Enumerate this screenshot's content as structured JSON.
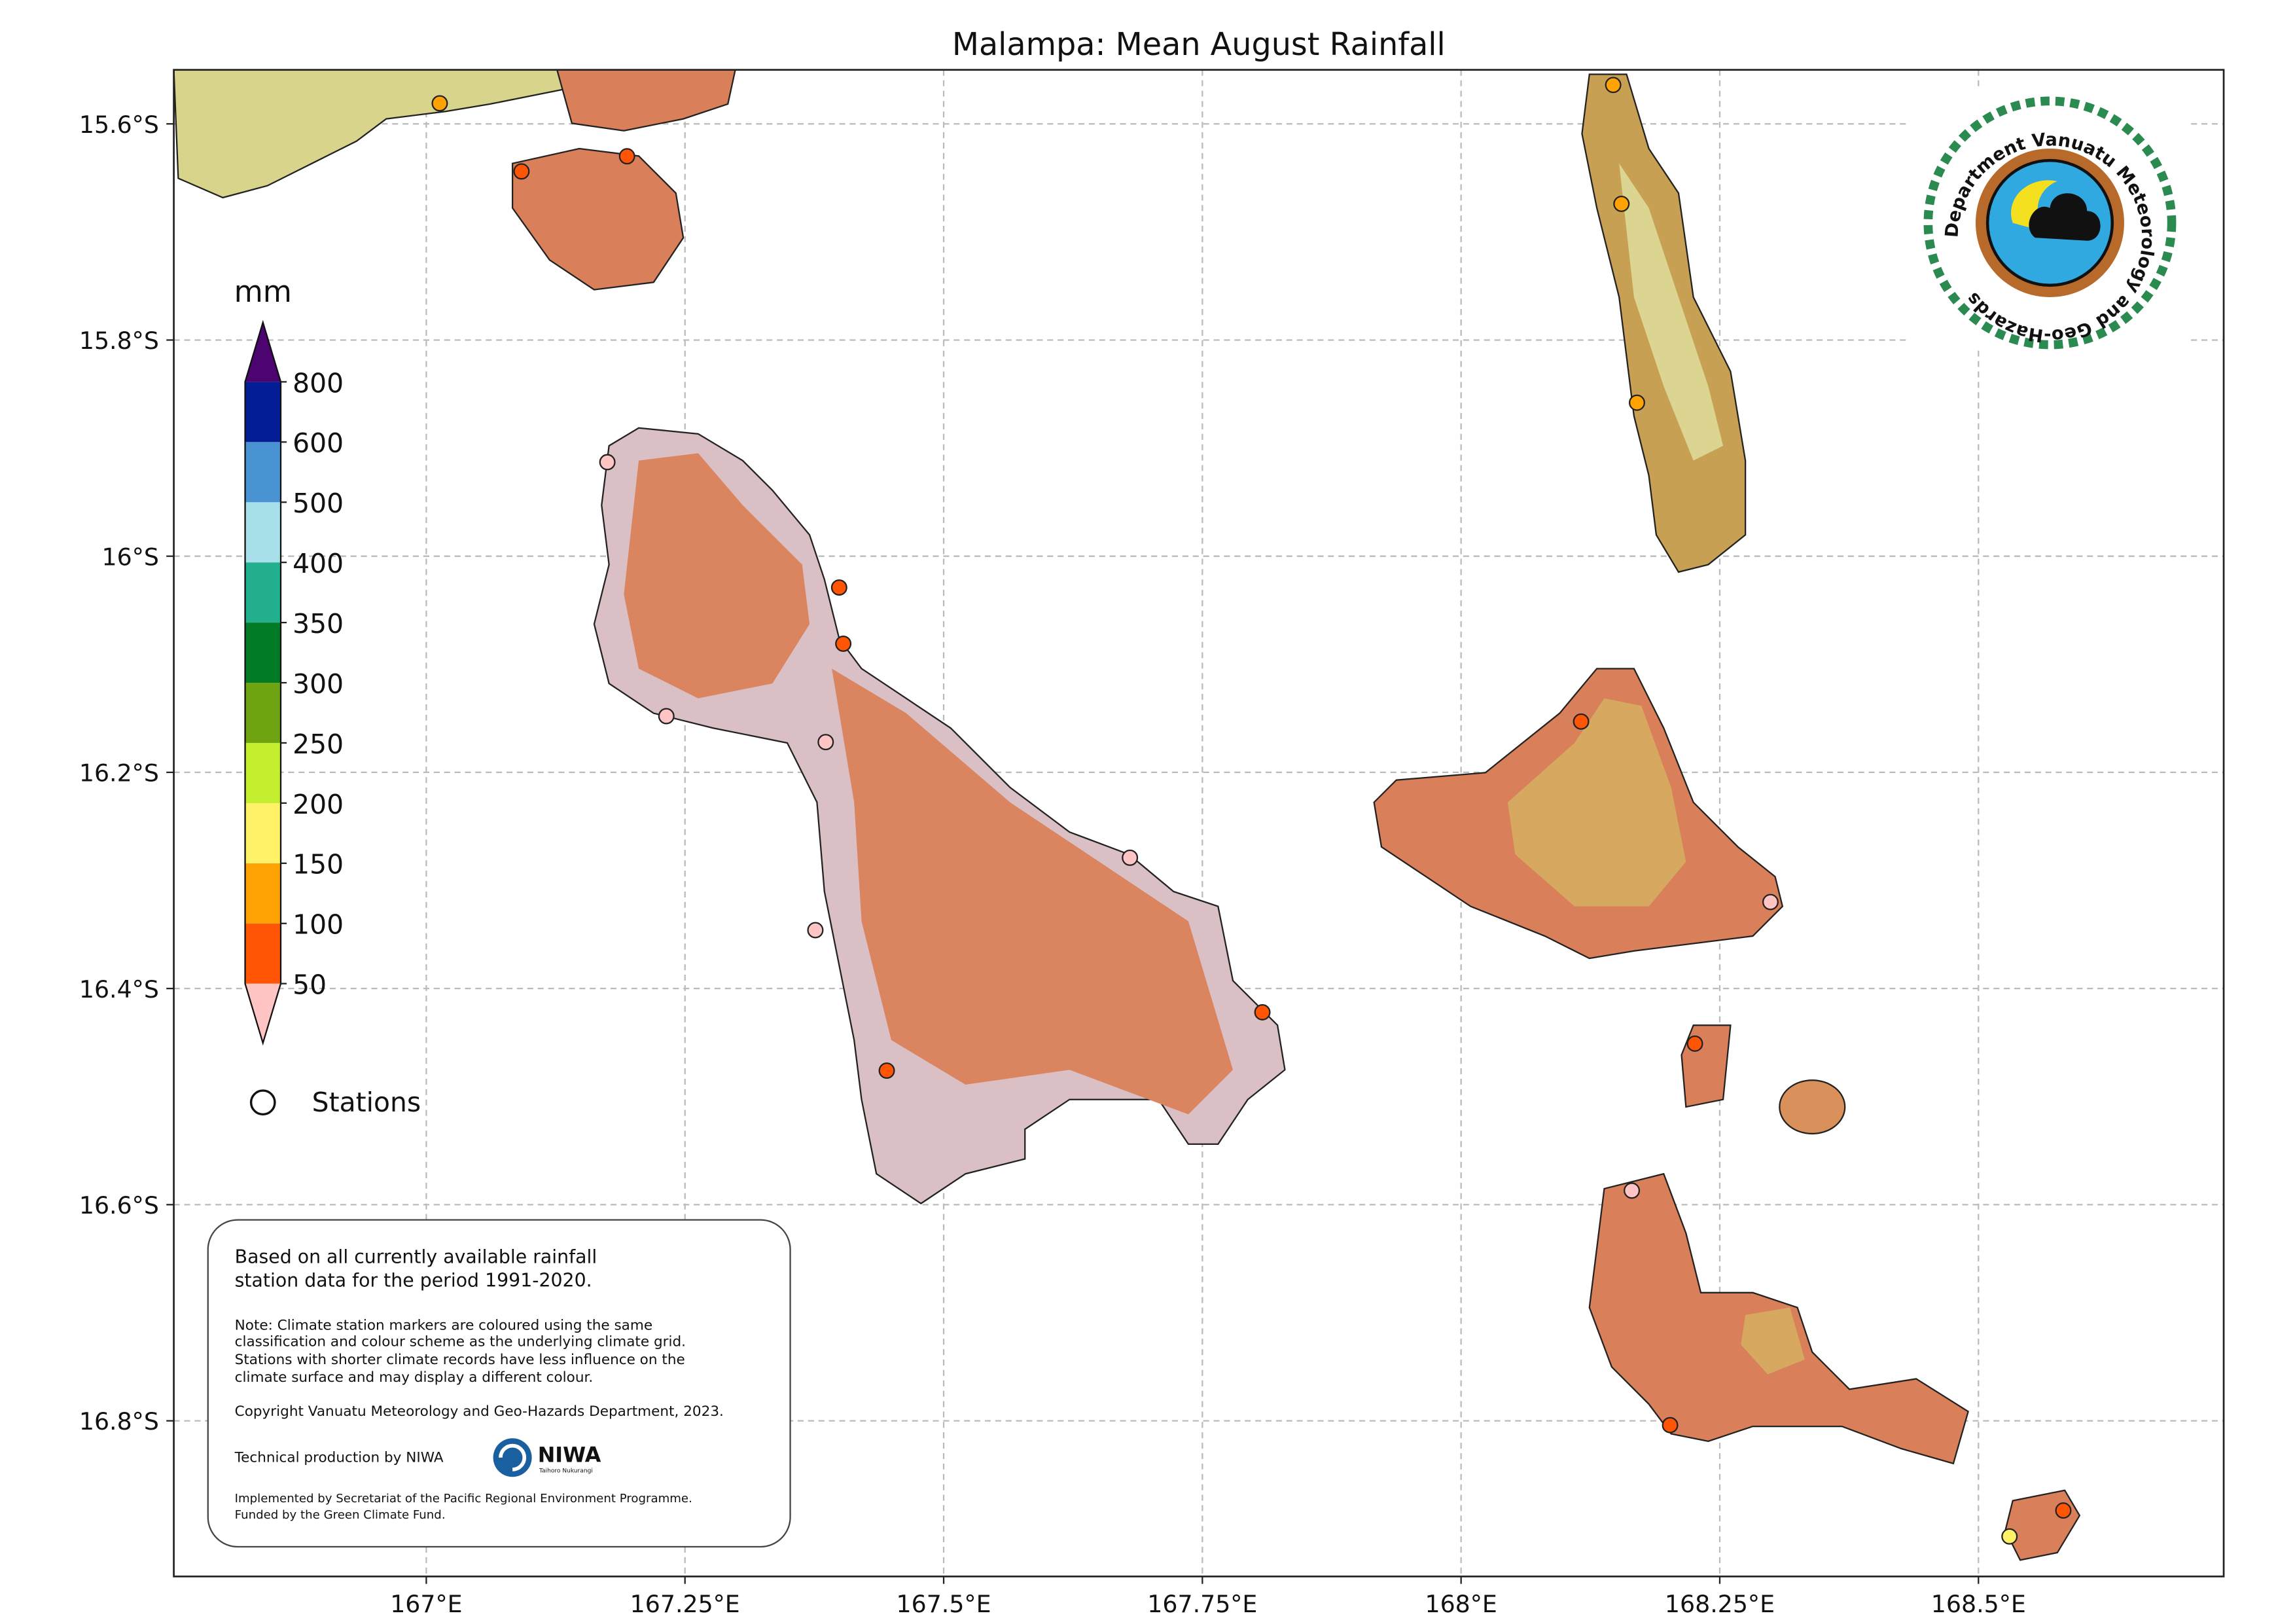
{
  "title": "Malampa: Mean August Rainfall",
  "map": {
    "xlim": [
      166.756,
      168.737
    ],
    "ylim": [
      -16.944,
      -15.55
    ],
    "xticks": [
      {
        "value": 167,
        "label": "167°E"
      },
      {
        "value": 167.25,
        "label": "167.25°E"
      },
      {
        "value": 167.5,
        "label": "167.5°E"
      },
      {
        "value": 167.75,
        "label": "167.75°E"
      },
      {
        "value": 168,
        "label": "168°E"
      },
      {
        "value": 168.25,
        "label": "168.25°E"
      },
      {
        "value": 168.5,
        "label": "168.5°E"
      }
    ],
    "yticks": [
      {
        "value": -15.6,
        "label": "15.6°S"
      },
      {
        "value": -15.8,
        "label": "15.8°S"
      },
      {
        "value": -16,
        "label": "16°S"
      },
      {
        "value": -16.2,
        "label": "16.2°S"
      },
      {
        "value": -16.4,
        "label": "16.4°S"
      },
      {
        "value": -16.6,
        "label": "16.6°S"
      },
      {
        "value": -16.8,
        "label": "16.8°S"
      }
    ]
  },
  "colorbar": {
    "unit": "mm",
    "levels": [
      50,
      100,
      150,
      200,
      250,
      300,
      350,
      400,
      500,
      600,
      800
    ],
    "colors": [
      "#ffc4c4",
      "#ff5505",
      "#ffa305",
      "#fff266",
      "#c3ee2d",
      "#6ea312",
      "#037a26",
      "#22b08f",
      "#a7e0e8",
      "#4a93d3",
      "#031d94",
      "#4c0470"
    ]
  },
  "legend_label": "Stations",
  "stations": [
    {
      "lon": 167.013,
      "lat": -15.581,
      "color": "#ffa305"
    },
    {
      "lon": 167.194,
      "lat": -15.63,
      "color": "#ff5505"
    },
    {
      "lon": 167.092,
      "lat": -15.644,
      "color": "#ff5505"
    },
    {
      "lon": 168.147,
      "lat": -15.564,
      "color": "#ffa305"
    },
    {
      "lon": 168.155,
      "lat": -15.674,
      "color": "#ffa305"
    },
    {
      "lon": 168.17,
      "lat": -15.858,
      "color": "#ffa305"
    },
    {
      "lon": 167.175,
      "lat": -15.913,
      "color": "#ffc4c4"
    },
    {
      "lon": 167.399,
      "lat": -16.029,
      "color": "#ff5505"
    },
    {
      "lon": 167.403,
      "lat": -16.081,
      "color": "#ff5505"
    },
    {
      "lon": 167.232,
      "lat": -16.148,
      "color": "#ffc4c4"
    },
    {
      "lon": 167.386,
      "lat": -16.172,
      "color": "#ffc4c4"
    },
    {
      "lon": 167.68,
      "lat": -16.279,
      "color": "#ffc4c4"
    },
    {
      "lon": 167.376,
      "lat": -16.346,
      "color": "#ffc4c4"
    },
    {
      "lon": 167.808,
      "lat": -16.422,
      "color": "#ff5505"
    },
    {
      "lon": 167.445,
      "lat": -16.476,
      "color": "#ff5505"
    },
    {
      "lon": 168.116,
      "lat": -16.153,
      "color": "#ff5505"
    },
    {
      "lon": 168.299,
      "lat": -16.32,
      "color": "#ffc4c4"
    },
    {
      "lon": 168.226,
      "lat": -16.451,
      "color": "#ff5505"
    },
    {
      "lon": 168.165,
      "lat": -16.587,
      "color": "#ffc4c4"
    },
    {
      "lon": 168.202,
      "lat": -16.804,
      "color": "#ff5505"
    },
    {
      "lon": 168.53,
      "lat": -16.907,
      "color": "#fff266"
    },
    {
      "lon": 168.582,
      "lat": -16.883,
      "color": "#ff5505"
    }
  ],
  "note": {
    "lead": [
      "Based on all currently available rainfall",
      "station data for the period 1991-2020."
    ],
    "detail": [
      "Note: Climate station markers are coloured using the same",
      "classification and colour scheme as the underlying climate grid.",
      "Stations with shorter climate records have less influence on the",
      "climate surface and may display a different colour."
    ],
    "copyright": "Copyright Vanuatu Meteorology and Geo-Hazards Department, 2023.",
    "production": "Technical production by NIWA",
    "funding": [
      "Implemented by Secretariat of the Pacific Regional Environment Programme.",
      "Funded by the Green Climate Fund."
    ]
  },
  "niwa": {
    "name": "NIWA",
    "tagline": "Taihoro Nukurangi"
  },
  "logo": {
    "text": "Department Vanuatu Meteorology and Geo-Hazards"
  }
}
